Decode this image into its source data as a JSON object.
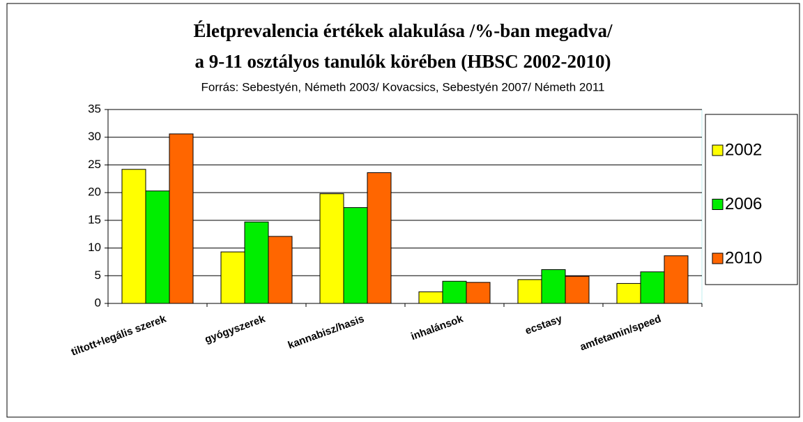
{
  "chart_data": {
    "type": "bar",
    "title": [
      "Életprevalencia értékek alakulása /%-ban megadva/",
      "a 9-11 osztályos tanulók körében (HBSC 2002-2010)"
    ],
    "subtitle": "Forrás: Sebestyén, Németh 2003/ Kovacsics, Sebestyén 2007/ Németh 2011",
    "categories": [
      "tiltott+legális szerek",
      "gyógyszerek",
      "kannabisz/hasis",
      "inhalánsok",
      "ecstasy",
      "amfetamin/speed"
    ],
    "series": [
      {
        "name": "2002",
        "color": "#ffff00",
        "values": [
          24.2,
          9.3,
          19.8,
          2.1,
          4.3,
          3.6
        ]
      },
      {
        "name": "2006",
        "color": "#00ee00",
        "values": [
          20.3,
          14.7,
          17.3,
          4.0,
          6.1,
          5.7
        ]
      },
      {
        "name": "2010",
        "color": "#ff6600",
        "values": [
          30.6,
          12.1,
          23.6,
          3.8,
          4.9,
          8.6
        ]
      }
    ],
    "ylim": [
      0,
      35
    ],
    "yticks": [
      0,
      5,
      10,
      15,
      20,
      25,
      30,
      35
    ],
    "grid": true,
    "legend": "right"
  }
}
